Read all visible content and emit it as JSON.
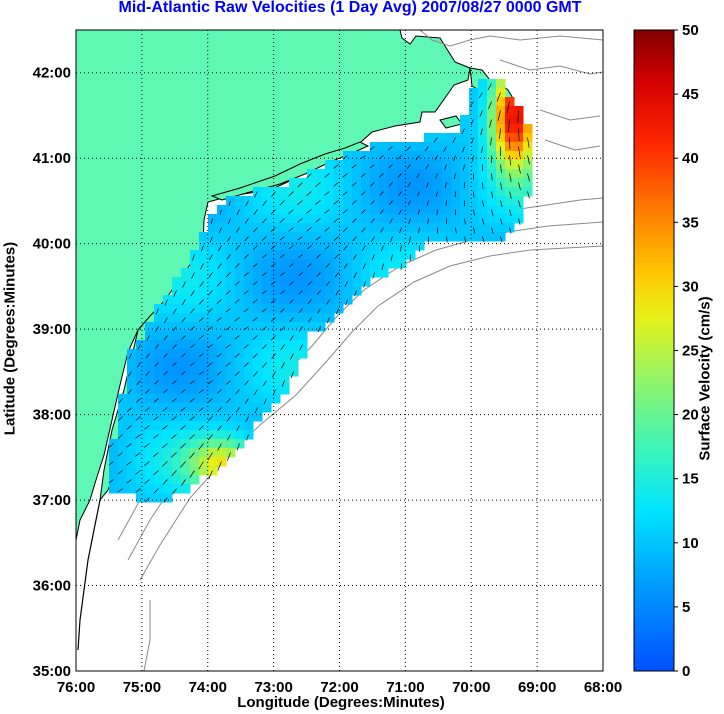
{
  "title": "Mid-Atlantic Raw Velocities (1 Day Avg) 2007/08/27 0000 GMT",
  "map": {
    "xlabel": "Longitude (Degrees:Minutes)",
    "ylabel": "Latitude (Degrees:Minutes)",
    "lon_ticks": [
      "76:00",
      "75:00",
      "74:00",
      "73:00",
      "72:00",
      "71:00",
      "70:00",
      "69:00",
      "68:00"
    ],
    "lat_ticks": [
      "42:00",
      "41:00",
      "40:00",
      "39:00",
      "38:00",
      "37:00",
      "36:00",
      "35:00"
    ],
    "lon_range": [
      -76,
      -68
    ],
    "lat_range": [
      35,
      42.5
    ],
    "grid": "dotted",
    "colors": {
      "land": "#5ff7b4",
      "ocean": "#ffffff",
      "bathymetry": "#8a8a8a",
      "coast": "#000000"
    }
  },
  "colorbar": {
    "label": "Surface Velocity (cm/s)",
    "ticks": [
      "50",
      "45",
      "40",
      "35",
      "30",
      "25",
      "20",
      "15",
      "10",
      "5",
      "0"
    ],
    "range": [
      0,
      50
    ],
    "colormap": "jet"
  }
}
